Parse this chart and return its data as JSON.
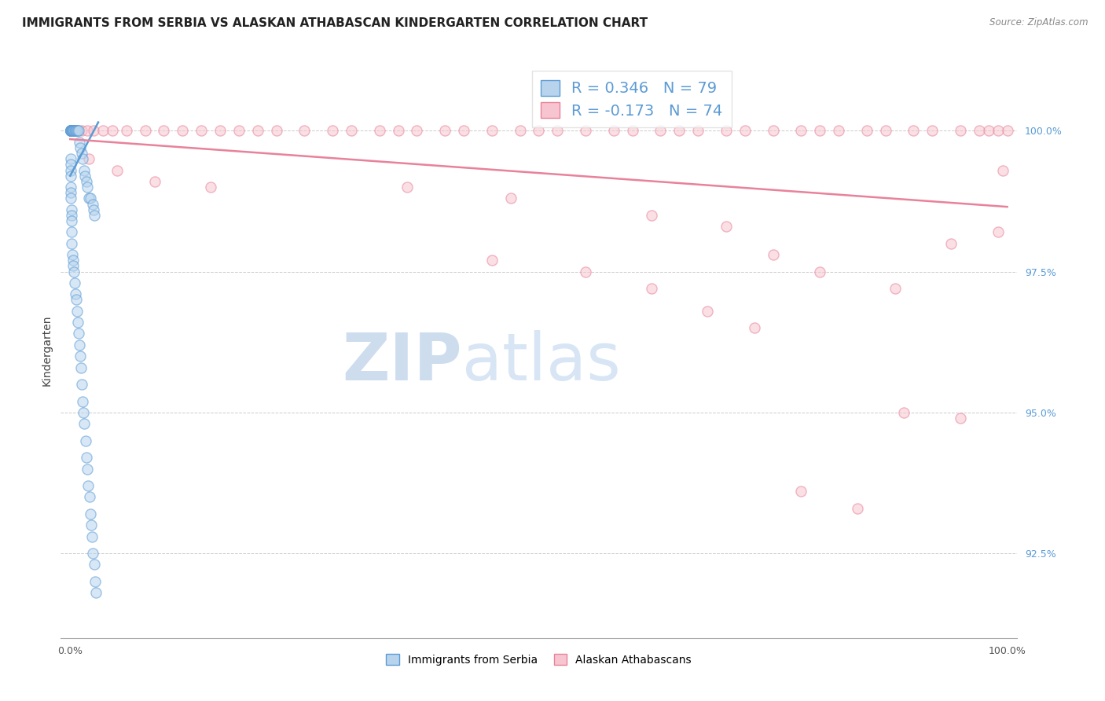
{
  "title": "IMMIGRANTS FROM SERBIA VS ALASKAN ATHABASCAN KINDERGARTEN CORRELATION CHART",
  "source": "Source: ZipAtlas.com",
  "ylabel": "Kindergarten",
  "watermark_zip": "ZIP",
  "watermark_atlas": "atlas",
  "legend_blue": "R = 0.346   N = 79",
  "legend_pink": "R = -0.173   N = 74",
  "legend_bottom_blue": "Immigrants from Serbia",
  "legend_bottom_pink": "Alaskan Athabascans",
  "blue_scatter_x": [
    0.05,
    0.05,
    0.05,
    0.05,
    0.05,
    0.1,
    0.1,
    0.1,
    0.1,
    0.15,
    0.15,
    0.15,
    0.2,
    0.2,
    0.25,
    0.3,
    0.35,
    0.4,
    0.5,
    0.55,
    0.6,
    0.65,
    0.7,
    0.8,
    0.9,
    1.0,
    1.1,
    1.2,
    1.3,
    1.5,
    1.6,
    1.7,
    1.8,
    2.0,
    2.2,
    2.4,
    2.5,
    2.6,
    0.05,
    0.05,
    0.05,
    0.05,
    0.08,
    0.08,
    0.08,
    0.12,
    0.12,
    0.12,
    0.15,
    0.18,
    0.22,
    0.28,
    0.33,
    0.38,
    0.45,
    0.55,
    0.65,
    0.75,
    0.85,
    0.92,
    0.98,
    1.05,
    1.15,
    1.25,
    1.35,
    1.42,
    1.52,
    1.65,
    1.75,
    1.85,
    1.92,
    2.05,
    2.15,
    2.25,
    2.35,
    2.45,
    2.55,
    2.65,
    2.75
  ],
  "blue_scatter_y": [
    100.0,
    100.0,
    100.0,
    100.0,
    100.0,
    100.0,
    100.0,
    100.0,
    100.0,
    100.0,
    100.0,
    100.0,
    100.0,
    100.0,
    100.0,
    100.0,
    100.0,
    100.0,
    100.0,
    100.0,
    100.0,
    100.0,
    100.0,
    100.0,
    100.0,
    99.8,
    99.7,
    99.6,
    99.5,
    99.3,
    99.2,
    99.1,
    99.0,
    98.8,
    98.8,
    98.7,
    98.6,
    98.5,
    99.5,
    99.4,
    99.3,
    99.2,
    99.0,
    98.9,
    98.8,
    98.6,
    98.5,
    98.4,
    98.2,
    98.0,
    97.8,
    97.7,
    97.6,
    97.5,
    97.3,
    97.1,
    97.0,
    96.8,
    96.6,
    96.4,
    96.2,
    96.0,
    95.8,
    95.5,
    95.2,
    95.0,
    94.8,
    94.5,
    94.2,
    94.0,
    93.7,
    93.5,
    93.2,
    93.0,
    92.8,
    92.5,
    92.3,
    92.0,
    91.8
  ],
  "pink_scatter_x": [
    0.1,
    0.3,
    0.5,
    0.8,
    1.2,
    1.8,
    2.5,
    3.5,
    4.5,
    6.0,
    8.0,
    10.0,
    12.0,
    14.0,
    16.0,
    18.0,
    20.0,
    22.0,
    25.0,
    28.0,
    30.0,
    33.0,
    35.0,
    37.0,
    40.0,
    42.0,
    45.0,
    48.0,
    50.0,
    52.0,
    55.0,
    58.0,
    60.0,
    63.0,
    65.0,
    67.0,
    70.0,
    72.0,
    75.0,
    78.0,
    80.0,
    82.0,
    85.0,
    87.0,
    90.0,
    92.0,
    95.0,
    97.0,
    98.0,
    99.0,
    100.0,
    2.0,
    5.0,
    9.0,
    15.0,
    36.0,
    47.0,
    62.0,
    70.0,
    75.0,
    80.0,
    88.0,
    95.0,
    99.5,
    45.0,
    55.0,
    62.0,
    68.0,
    73.0,
    78.0,
    84.0,
    89.0,
    94.0,
    99.0
  ],
  "pink_scatter_y": [
    100.0,
    100.0,
    100.0,
    100.0,
    100.0,
    100.0,
    100.0,
    100.0,
    100.0,
    100.0,
    100.0,
    100.0,
    100.0,
    100.0,
    100.0,
    100.0,
    100.0,
    100.0,
    100.0,
    100.0,
    100.0,
    100.0,
    100.0,
    100.0,
    100.0,
    100.0,
    100.0,
    100.0,
    100.0,
    100.0,
    100.0,
    100.0,
    100.0,
    100.0,
    100.0,
    100.0,
    100.0,
    100.0,
    100.0,
    100.0,
    100.0,
    100.0,
    100.0,
    100.0,
    100.0,
    100.0,
    100.0,
    100.0,
    100.0,
    100.0,
    100.0,
    99.5,
    99.3,
    99.1,
    99.0,
    99.0,
    98.8,
    98.5,
    98.3,
    97.8,
    97.5,
    97.2,
    94.9,
    99.3,
    97.7,
    97.5,
    97.2,
    96.8,
    96.5,
    93.6,
    93.3,
    95.0,
    98.0,
    98.2
  ],
  "blue_line": [
    [
      0,
      3.0
    ],
    [
      99.2,
      100.15
    ]
  ],
  "pink_line": [
    [
      0,
      100
    ],
    [
      99.85,
      98.65
    ]
  ],
  "ylim": [
    91.0,
    101.2
  ],
  "xlim": [
    -1,
    101
  ],
  "y_ticks": [
    92.5,
    95.0,
    97.5,
    100.0
  ],
  "y_tick_labels": [
    "92.5%",
    "95.0%",
    "97.5%",
    "100.0%"
  ],
  "x_ticks": [
    0,
    25,
    50,
    75,
    100
  ],
  "x_tick_labels": [
    "0.0%",
    "",
    "",
    "",
    "100.0%"
  ],
  "scatter_size": 90,
  "scatter_alpha": 0.55,
  "blue_color": "#5b9bd5",
  "blue_fill": "#b8d4ed",
  "pink_color": "#e8829a",
  "pink_fill": "#f7c5cf",
  "grid_color": "#cccccc",
  "background_color": "#ffffff",
  "title_fontsize": 11,
  "axis_label_fontsize": 10,
  "tick_fontsize": 9,
  "tick_color_y": "#5b9bd5",
  "legend_fontsize": 14,
  "watermark_color_zip": "#b8cfe8",
  "watermark_color_atlas": "#c8daf0",
  "watermark_fontsize": 60
}
